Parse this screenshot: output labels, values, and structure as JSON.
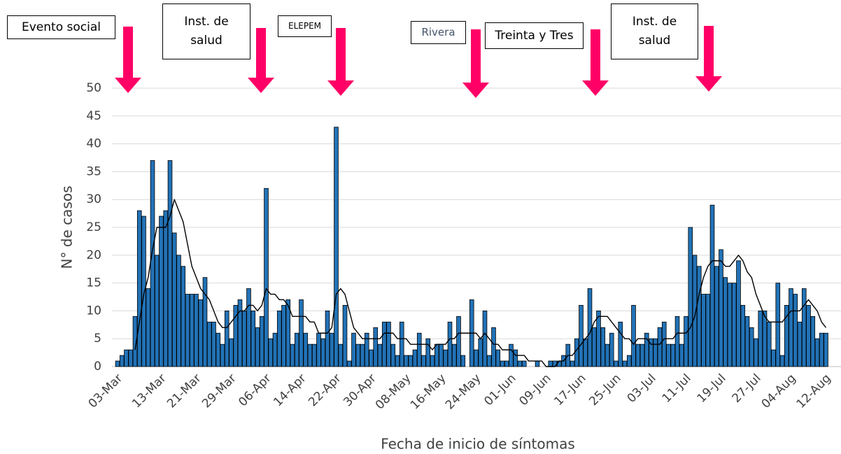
{
  "chart_data": {
    "type": "bar",
    "xlabel": "Fecha de inicio de síntomas",
    "ylabel": "N° de casos",
    "categories": [
      "03-Mar",
      null,
      null,
      null,
      null,
      null,
      null,
      null,
      null,
      null,
      "13-Mar",
      null,
      null,
      null,
      null,
      null,
      null,
      null,
      "21-Mar",
      null,
      null,
      null,
      null,
      null,
      null,
      null,
      "29-Mar",
      null,
      null,
      null,
      null,
      null,
      null,
      null,
      "06-Apr",
      null,
      null,
      null,
      null,
      null,
      null,
      null,
      "14-Apr",
      null,
      null,
      null,
      null,
      null,
      null,
      null,
      "22-Apr",
      null,
      null,
      null,
      null,
      null,
      null,
      null,
      "30-Apr",
      null,
      null,
      null,
      null,
      null,
      null,
      null,
      "08-May",
      null,
      null,
      null,
      null,
      null,
      null,
      null,
      "16-May",
      null,
      null,
      null,
      null,
      null,
      null,
      null,
      "24-May",
      null,
      null,
      null,
      null,
      null,
      null,
      null,
      "01-Jun",
      null,
      null,
      null,
      null,
      null,
      null,
      null,
      "09-Jun",
      null,
      null,
      null,
      null,
      null,
      null,
      null,
      "17-Jun",
      null,
      null,
      null,
      null,
      null,
      null,
      null,
      "25-Jun",
      null,
      null,
      null,
      null,
      null,
      null,
      null,
      "03-Jul",
      null,
      null,
      null,
      null,
      null,
      null,
      null,
      "11-Jul",
      null,
      null,
      null,
      null,
      null,
      null,
      null,
      "19-Jul",
      null,
      null,
      null,
      null,
      null,
      null,
      null,
      "27-Jul",
      null,
      null,
      null,
      null,
      null,
      null,
      null,
      "04-Aug",
      null,
      null,
      null,
      null,
      null,
      null,
      null,
      "12-Aug"
    ],
    "series": [
      {
        "color": "#2272b6",
        "values": [
          1,
          2,
          3,
          3,
          9,
          28,
          27,
          14,
          37,
          20,
          27,
          28,
          37,
          24,
          20,
          18,
          13,
          13,
          13,
          12,
          16,
          8,
          8,
          6,
          4,
          10,
          5,
          11,
          12,
          10,
          14,
          10,
          7,
          9,
          32,
          5,
          6,
          10,
          11,
          12,
          4,
          6,
          12,
          6,
          4,
          4,
          6,
          5,
          10,
          6,
          43,
          4,
          11,
          1,
          6,
          4,
          4,
          6,
          3,
          7,
          4,
          8,
          8,
          4,
          2,
          8,
          2,
          2,
          3,
          6,
          2,
          5,
          2,
          4,
          4,
          3,
          8,
          4,
          9,
          2,
          0,
          12,
          3,
          5,
          10,
          2,
          7,
          3,
          1,
          1,
          4,
          3,
          1,
          1,
          0,
          0,
          1,
          0,
          0,
          1,
          1,
          1,
          2,
          4,
          1,
          5,
          11,
          5,
          14,
          7,
          10,
          7,
          4,
          6,
          1,
          8,
          1,
          2,
          11,
          4,
          4,
          6,
          5,
          5,
          7,
          8,
          4,
          4,
          9,
          4,
          9,
          25,
          20,
          18,
          13,
          13,
          29,
          18,
          21,
          16,
          15,
          15,
          19,
          11,
          9,
          7,
          5,
          10,
          10,
          8,
          3,
          15,
          2,
          11,
          14,
          13,
          8,
          14,
          11,
          9,
          5,
          6,
          6
        ]
      },
      {
        "type": "line",
        "color": "#000000",
        "values": [
          null,
          null,
          null,
          null,
          3,
          8,
          13,
          16,
          21,
          25,
          25,
          25,
          27,
          30,
          28,
          26,
          22,
          18,
          16,
          14,
          13,
          12,
          10,
          8,
          7,
          7,
          8,
          9,
          10,
          10,
          11,
          11,
          10,
          11,
          14,
          13,
          13,
          12,
          12,
          11,
          9,
          9,
          9,
          9,
          8,
          8,
          6,
          6,
          6,
          7,
          13,
          14,
          13,
          10,
          7,
          6,
          5,
          5,
          5,
          5,
          5,
          6,
          6,
          6,
          5,
          5,
          5,
          4,
          4,
          4,
          4,
          4,
          3,
          4,
          4,
          4,
          5,
          5,
          6,
          6,
          6,
          6,
          6,
          5,
          6,
          5,
          4,
          4,
          3,
          3,
          3,
          2,
          2,
          2,
          1,
          1,
          1,
          1,
          0,
          0,
          0,
          1,
          1,
          2,
          2,
          3,
          4,
          5,
          6,
          8,
          9,
          9,
          9,
          8,
          7,
          6,
          5,
          5,
          4,
          5,
          5,
          5,
          4,
          4,
          4,
          5,
          5,
          5,
          6,
          6,
          6,
          7,
          9,
          13,
          16,
          18,
          19,
          19,
          19,
          18,
          18,
          19,
          20,
          19,
          17,
          16,
          13,
          11,
          9,
          8,
          8,
          8,
          8,
          9,
          10,
          10,
          10,
          11,
          12,
          11,
          10,
          8,
          7
        ]
      }
    ],
    "ylim": [
      0,
      50
    ],
    "yticks": [
      0,
      5,
      10,
      15,
      20,
      25,
      30,
      35,
      40,
      45,
      50
    ],
    "grid": true,
    "annotations": [
      {
        "text": "Evento social",
        "arrow_color": "#ff0066"
      },
      {
        "text": "Inst. de salud",
        "arrow_color": "#ff0066"
      },
      {
        "text": "ELEPEM",
        "arrow_color": "#ff0066"
      },
      {
        "text": "Rivera",
        "arrow_color": "#ff0066"
      },
      {
        "text": "Treinta y Tres",
        "arrow_color": "#ff0066"
      },
      {
        "text": "Inst. de salud",
        "arrow_color": "#ff0066"
      }
    ]
  }
}
